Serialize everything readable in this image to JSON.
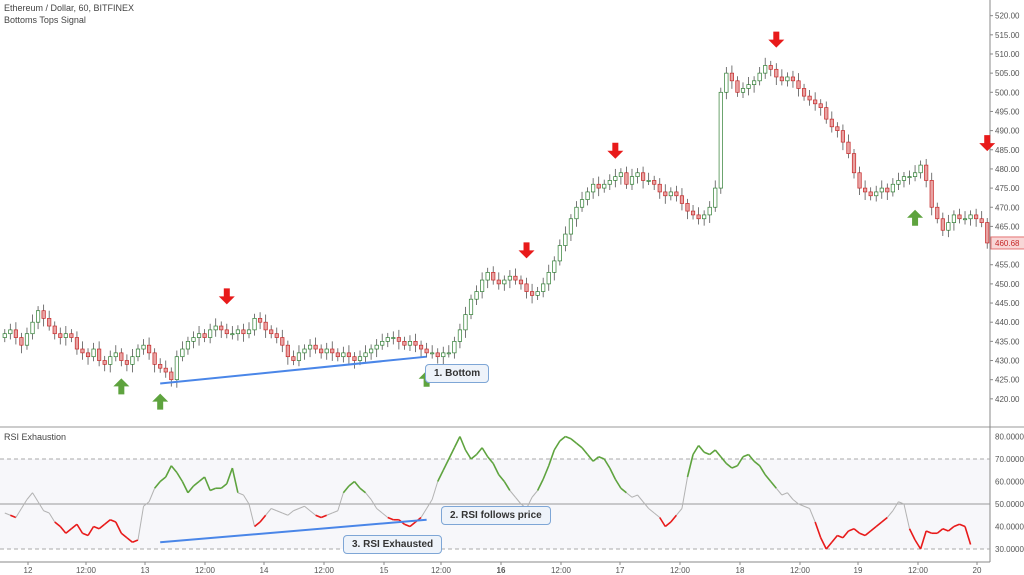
{
  "header": {
    "title": "Ethereum / Dollar, 60, BITFINEX",
    "indicator": "Bottoms Tops Signal"
  },
  "rsi_panel": {
    "title": "RSI Exhaustion"
  },
  "price_label": "460.68",
  "annotations": {
    "bottom": "1. Bottom",
    "rsi_follows": "2. RSI follows price",
    "rsi_exhausted": "3. RSI Exhausted"
  },
  "colors": {
    "up": "#4caf50",
    "down": "#e53935",
    "signal_up": "#5ea33e",
    "signal_down": "#e81a1a",
    "trendline": "#4a86e8",
    "rsi": "#b3b3b3"
  },
  "chart_data": [
    {
      "type": "candlestick",
      "title": "Ethereum / Dollar, 60, BITFINEX",
      "ylim": [
        415,
        522
      ],
      "y_ticks": [
        "420.00",
        "425.00",
        "430.00",
        "435.00",
        "440.00",
        "445.00",
        "450.00",
        "455.00",
        "460.00",
        "465.00",
        "470.00",
        "475.00",
        "480.00",
        "485.00",
        "490.00",
        "495.00",
        "500.00",
        "505.00",
        "510.00",
        "515.00",
        "520.00"
      ],
      "x_ticks": [
        "12",
        "12:00",
        "13",
        "12:00",
        "14",
        "12:00",
        "15",
        "12:00",
        "16",
        "12:00",
        "17",
        "12:00",
        "18",
        "12:00",
        "19",
        "12:00",
        "20"
      ],
      "closes": [
        437,
        438,
        436,
        434,
        437,
        440,
        443,
        441,
        439,
        437,
        436,
        437,
        436,
        433,
        432,
        431,
        433,
        430,
        429,
        431,
        432,
        430,
        429,
        431,
        433,
        434,
        432,
        429,
        428,
        427,
        425,
        431,
        433,
        435,
        436,
        437,
        436,
        438,
        439,
        438,
        437,
        437,
        438,
        437,
        438,
        441,
        440,
        438,
        437,
        436,
        434,
        431,
        430,
        432,
        433,
        434,
        433,
        432,
        433,
        432,
        431,
        432,
        431,
        430,
        431,
        432,
        433,
        434,
        435,
        436,
        436,
        435,
        434,
        435,
        434,
        433,
        432,
        432,
        431,
        432,
        432,
        435,
        438,
        442,
        446,
        448,
        451,
        453,
        451,
        450,
        451,
        452,
        451,
        450,
        448,
        447,
        448,
        450,
        453,
        456,
        460,
        463,
        467,
        470,
        472,
        474,
        476,
        475,
        476,
        477,
        478,
        479,
        476,
        478,
        479,
        477,
        477,
        476,
        474,
        473,
        474,
        473,
        471,
        469,
        468,
        467,
        468,
        470,
        475,
        500,
        505,
        503,
        500,
        501,
        502,
        503,
        505,
        507,
        506,
        504,
        503,
        504,
        503,
        501,
        499,
        498,
        497,
        496,
        493,
        491,
        490,
        487,
        484,
        479,
        475,
        474,
        473,
        474,
        475,
        474,
        476,
        477,
        478,
        478,
        479,
        481,
        477,
        470,
        467,
        464,
        466,
        468,
        467,
        467,
        468,
        467,
        466,
        460.68
      ],
      "signals": [
        {
          "type": "bottom",
          "x": "12 ~10:00",
          "price": 429
        },
        {
          "type": "bottom",
          "x": "13 ~00:00",
          "price": 425
        },
        {
          "type": "top",
          "x": "13 ~16:00",
          "price": 441
        },
        {
          "type": "bottom",
          "x": "15 ~09:00",
          "price": 431
        },
        {
          "type": "top",
          "x": "15 ~21:00",
          "price": 453
        },
        {
          "type": "top",
          "x": "16 ~20:00",
          "price": 479
        },
        {
          "type": "top",
          "x": "18 ~10:00",
          "price": 508
        },
        {
          "type": "bottom",
          "x": "19 ~02:00",
          "price": 473
        },
        {
          "type": "top",
          "x": "19 ~17:00",
          "price": 481
        }
      ],
      "trendline": {
        "from": {
          "x": "13 ~00:00",
          "price": 424
        },
        "to": {
          "x": "15 ~09:00",
          "price": 431
        }
      },
      "last_price": 460.68
    },
    {
      "type": "line",
      "title": "RSI Exhaustion",
      "ylim": [
        26,
        82
      ],
      "y_ticks": [
        "30.0000",
        "40.0000",
        "50.0000",
        "60.0000",
        "70.0000",
        "80.0000"
      ],
      "levels": [
        30,
        50,
        70
      ],
      "values": [
        46,
        45,
        44,
        48,
        52,
        55,
        51,
        47,
        46,
        42,
        40,
        37,
        39,
        41,
        37,
        36,
        40,
        39,
        41,
        43,
        42,
        37,
        35,
        33,
        34,
        49,
        51,
        57,
        60,
        62,
        67,
        64,
        60,
        55,
        58,
        60,
        62,
        56,
        57,
        57,
        59,
        66,
        55,
        54,
        50,
        40,
        42,
        45,
        48,
        47,
        46,
        45,
        47,
        48,
        49,
        47,
        45,
        44,
        45,
        46,
        47,
        55,
        58,
        60,
        57,
        55,
        52,
        48,
        46,
        44,
        43,
        43,
        41,
        40,
        42,
        44,
        48,
        52,
        60,
        65,
        70,
        75,
        80,
        74,
        70,
        72,
        75,
        71,
        68,
        63,
        60,
        56,
        53,
        50,
        48,
        53,
        56,
        61,
        67,
        74,
        78,
        80,
        79,
        77,
        75,
        72,
        69,
        71,
        70,
        66,
        61,
        57,
        55,
        53,
        54,
        51,
        48,
        46,
        44,
        40,
        42,
        45,
        48,
        62,
        72,
        76,
        73,
        72,
        74,
        71,
        68,
        66,
        67,
        71,
        72,
        69,
        67,
        63,
        60,
        57,
        54,
        55,
        52,
        50,
        49,
        48,
        42,
        35,
        30,
        33,
        36,
        35,
        38,
        39,
        37,
        36,
        38,
        40,
        42,
        44,
        47,
        51,
        50,
        39,
        34,
        30,
        38,
        37,
        37,
        39,
        38,
        40,
        41,
        40,
        32
      ],
      "exhaustion_segments": "green above 55, red below 45",
      "trendline": {
        "from": {
          "x": "13 ~00:00",
          "value": 33
        },
        "to": {
          "x": "15 ~09:00",
          "value": 43
        }
      }
    }
  ]
}
